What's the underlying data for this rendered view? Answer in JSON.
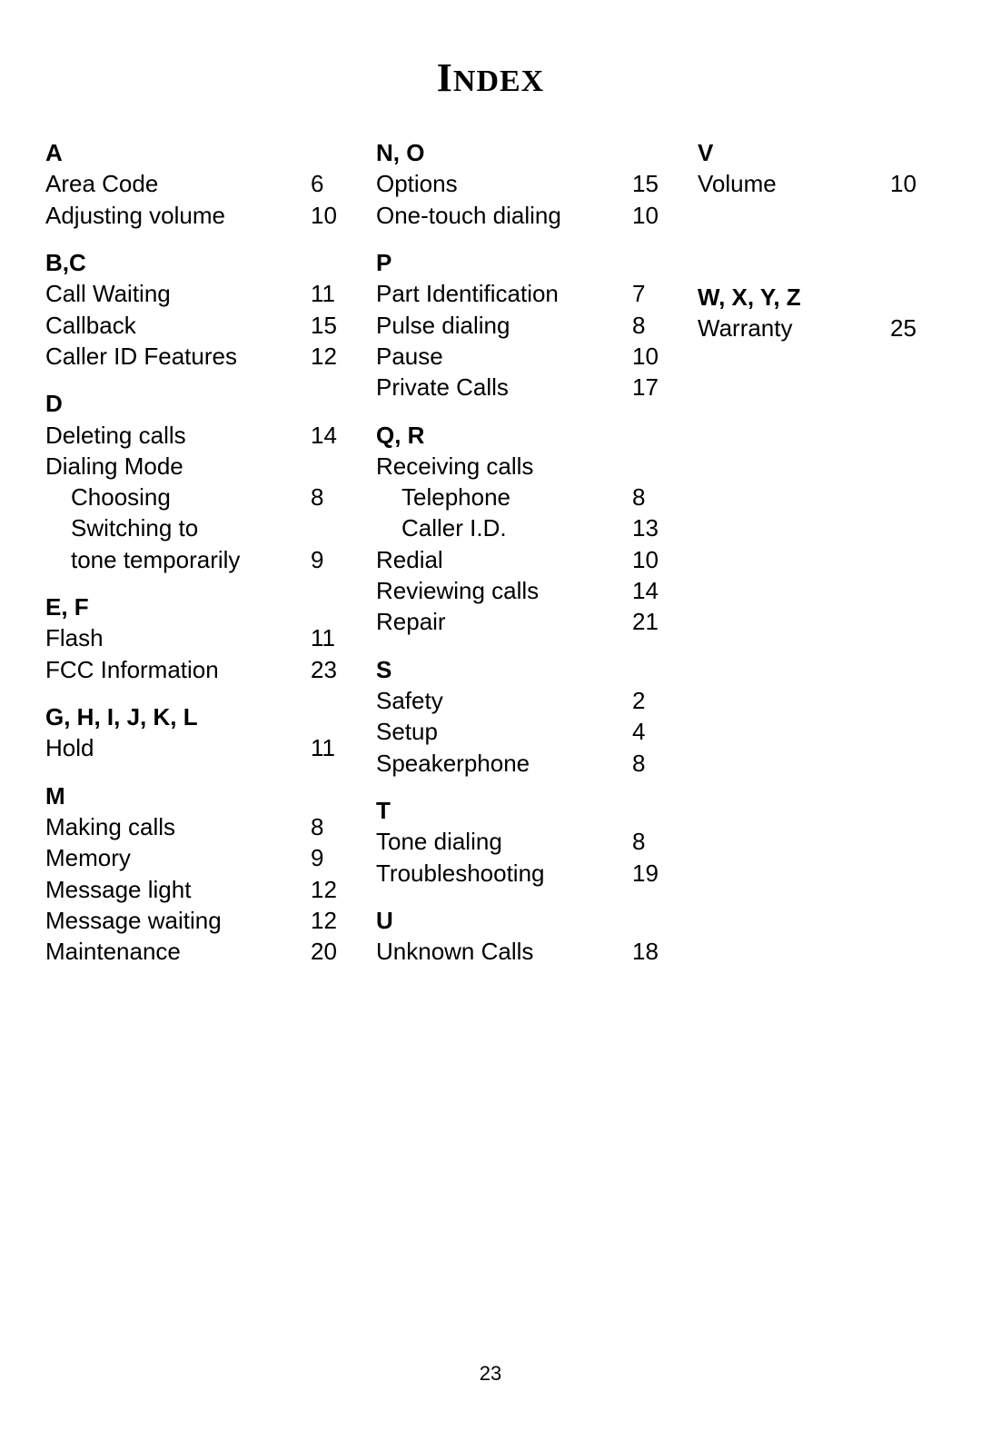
{
  "title_leading": "I",
  "title_rest": "NDEX",
  "page_number": "23",
  "columns": [
    {
      "sections": [
        {
          "heading": "A",
          "entries": [
            {
              "label": "Area Code",
              "page": "6"
            },
            {
              "label": "Adjusting volume",
              "page": "10"
            }
          ]
        },
        {
          "heading": "B,C",
          "entries": [
            {
              "label": "Call Waiting",
              "page": "11"
            },
            {
              "label": "Callback",
              "page": "15"
            },
            {
              "label": "Caller ID Features",
              "page": "12"
            }
          ]
        },
        {
          "heading": "D",
          "entries": [
            {
              "label": "Deleting calls",
              "page": "14"
            },
            {
              "label": "Dialing Mode",
              "page": ""
            },
            {
              "label": "Choosing",
              "page": "8",
              "indent": 1
            },
            {
              "label": "Switching to",
              "page": "",
              "indent": 1
            },
            {
              "label": "tone temporarily",
              "page": "9",
              "indent": 1
            }
          ]
        },
        {
          "heading": "E, F",
          "entries": [
            {
              "label": "Flash",
              "page": "11"
            },
            {
              "label": "FCC Information",
              "page": "23"
            }
          ]
        },
        {
          "heading": "G, H, I, J, K, L",
          "entries": [
            {
              "label": "Hold",
              "page": "11"
            }
          ]
        },
        {
          "heading": "M",
          "entries": [
            {
              "label": "Making calls",
              "page": "8"
            },
            {
              "label": "Memory",
              "page": "9"
            },
            {
              "label": "Message light",
              "page": "12"
            },
            {
              "label": "Message waiting",
              "page": "12"
            },
            {
              "label": "Maintenance",
              "page": "20"
            }
          ]
        }
      ]
    },
    {
      "sections": [
        {
          "heading": "N, O",
          "entries": [
            {
              "label": "Options",
              "page": "15"
            },
            {
              "label": "One-touch dialing",
              "page": "10"
            }
          ]
        },
        {
          "heading": "P",
          "entries": [
            {
              "label": "Part Identification",
              "page": "7"
            },
            {
              "label": "Pulse dialing",
              "page": "8"
            },
            {
              "label": "Pause",
              "page": "10"
            },
            {
              "label": "Private Calls",
              "page": "17"
            }
          ]
        },
        {
          "heading": "Q, R",
          "entries": [
            {
              "label": "Receiving calls",
              "page": ""
            },
            {
              "label": "Telephone",
              "page": "8",
              "indent": 1
            },
            {
              "label": "Caller I.D.",
              "page": "13",
              "indent": 1
            },
            {
              "label": "Redial",
              "page": "10"
            },
            {
              "label": "Reviewing calls",
              "page": "14"
            },
            {
              "label": "Repair",
              "page": "21"
            }
          ]
        },
        {
          "heading": "S",
          "entries": [
            {
              "label": "Safety",
              "page": "2"
            },
            {
              "label": "Setup",
              "page": "4"
            },
            {
              "label": "Speakerphone",
              "page": "8"
            }
          ]
        },
        {
          "heading": "T",
          "entries": [
            {
              "label": "Tone dialing",
              "page": "8"
            },
            {
              "label": "Troubleshooting",
              "page": "19"
            }
          ]
        },
        {
          "heading": "U",
          "entries": [
            {
              "label": "Unknown Calls",
              "page": "18"
            }
          ]
        }
      ]
    },
    {
      "sections": [
        {
          "heading": "V",
          "entries": [
            {
              "label": "Volume",
              "page": "10"
            }
          ]
        },
        {
          "spacer": 72
        },
        {
          "heading": "W, X, Y, Z",
          "entries": [
            {
              "label": "Warranty",
              "page": "25"
            }
          ]
        }
      ]
    }
  ]
}
